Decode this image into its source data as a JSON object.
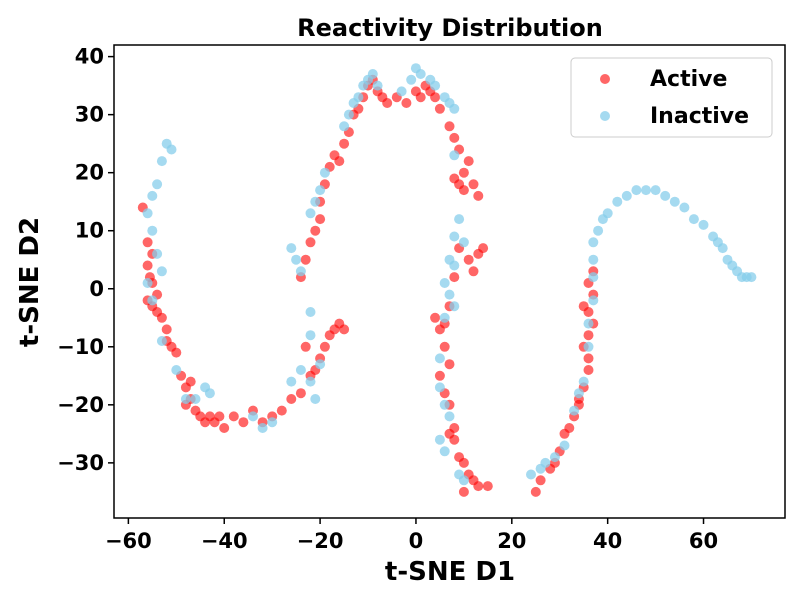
{
  "chart_data": {
    "type": "scatter",
    "title": "Reactivity Distribution",
    "xlabel": "t-SNE D1",
    "ylabel": "t-SNE D2",
    "xlim": [
      -63,
      77
    ],
    "ylim": [
      -39.5,
      42
    ],
    "xticks": [
      -60,
      -40,
      -20,
      0,
      20,
      40,
      60
    ],
    "xtick_labels": [
      "−60",
      "−40",
      "−20",
      "0",
      "20",
      "40",
      "60"
    ],
    "yticks": [
      -30,
      -20,
      -10,
      0,
      10,
      20,
      30,
      40
    ],
    "ytick_labels": [
      "−30",
      "−20",
      "−10",
      "0",
      "10",
      "20",
      "30",
      "40"
    ],
    "grid": false,
    "legend_position": "top-right",
    "series": [
      {
        "name": "Active",
        "color": "#ff0000",
        "alpha": 0.6,
        "points": [
          [
            -57,
            14
          ],
          [
            -56,
            8
          ],
          [
            -56,
            4
          ],
          [
            -55.5,
            2
          ],
          [
            -55,
            6
          ],
          [
            -55,
            1
          ],
          [
            -56,
            -2
          ],
          [
            -55,
            -3
          ],
          [
            -54,
            -4
          ],
          [
            -54,
            -1
          ],
          [
            -53,
            -5
          ],
          [
            -52,
            -9
          ],
          [
            -52,
            -7
          ],
          [
            -51,
            -10
          ],
          [
            -50,
            -11
          ],
          [
            -49,
            -15
          ],
          [
            -48,
            -17
          ],
          [
            -47,
            -16
          ],
          [
            -48,
            -20
          ],
          [
            -47,
            -19
          ],
          [
            -46,
            -21
          ],
          [
            -45,
            -22
          ],
          [
            -44,
            -23
          ],
          [
            -43,
            -22
          ],
          [
            -42,
            -23
          ],
          [
            -41,
            -22
          ],
          [
            -40,
            -24
          ],
          [
            -38,
            -22
          ],
          [
            -36,
            -23
          ],
          [
            -34,
            -21
          ],
          [
            -32,
            -23
          ],
          [
            -30,
            -22
          ],
          [
            -28,
            -21
          ],
          [
            -26,
            -19
          ],
          [
            -24,
            -18
          ],
          [
            -22,
            -15
          ],
          [
            -21,
            -14
          ],
          [
            -20,
            -12
          ],
          [
            -19,
            -10
          ],
          [
            -18,
            -8
          ],
          [
            -17,
            -7
          ],
          [
            -16,
            -6
          ],
          [
            -15,
            -7
          ],
          [
            -23,
            -10
          ],
          [
            -24,
            2
          ],
          [
            -23,
            5
          ],
          [
            -22,
            8
          ],
          [
            -21,
            10
          ],
          [
            -20,
            12
          ],
          [
            -20,
            15
          ],
          [
            -19,
            18
          ],
          [
            -18,
            21
          ],
          [
            -17,
            23
          ],
          [
            -16,
            22
          ],
          [
            -15,
            25
          ],
          [
            -14,
            27
          ],
          [
            -13,
            30
          ],
          [
            -12,
            31
          ],
          [
            -11,
            33
          ],
          [
            -10,
            35
          ],
          [
            -9,
            36
          ],
          [
            -8,
            34
          ],
          [
            -7,
            33
          ],
          [
            -6,
            32
          ],
          [
            -4,
            33
          ],
          [
            -2,
            32
          ],
          [
            0,
            34
          ],
          [
            1,
            33
          ],
          [
            2,
            35
          ],
          [
            3,
            34
          ],
          [
            4,
            33
          ],
          [
            5,
            31
          ],
          [
            7,
            28
          ],
          [
            8,
            26
          ],
          [
            9,
            24
          ],
          [
            10,
            20
          ],
          [
            9,
            18
          ],
          [
            8,
            19
          ],
          [
            11,
            22
          ],
          [
            12,
            18
          ],
          [
            10,
            17
          ],
          [
            13,
            16
          ],
          [
            9,
            7
          ],
          [
            11,
            5
          ],
          [
            12,
            3
          ],
          [
            13,
            6
          ],
          [
            14,
            7
          ],
          [
            8,
            2
          ],
          [
            7,
            -3
          ],
          [
            6,
            -6
          ],
          [
            5,
            -7
          ],
          [
            4,
            -5
          ],
          [
            6,
            -10
          ],
          [
            7,
            -13
          ],
          [
            5,
            -15
          ],
          [
            6,
            -18
          ],
          [
            7,
            -20
          ],
          [
            8,
            -24
          ],
          [
            7,
            -25
          ],
          [
            8,
            -26
          ],
          [
            9,
            -29
          ],
          [
            10,
            -30
          ],
          [
            11,
            -32
          ],
          [
            12,
            -33
          ],
          [
            13,
            -34
          ],
          [
            15,
            -34
          ],
          [
            10,
            -35
          ],
          [
            25,
            -35
          ],
          [
            26,
            -33
          ],
          [
            28,
            -31
          ],
          [
            29,
            -30
          ],
          [
            30,
            -28
          ],
          [
            31,
            -25
          ],
          [
            32,
            -24
          ],
          [
            33,
            -22
          ],
          [
            34,
            -20
          ],
          [
            34,
            -19
          ],
          [
            35,
            -17
          ],
          [
            36,
            -14
          ],
          [
            36,
            -12
          ],
          [
            35,
            -10
          ],
          [
            36,
            -8
          ],
          [
            37,
            -6
          ],
          [
            36,
            -4
          ],
          [
            35,
            -3
          ],
          [
            37,
            -1
          ],
          [
            36,
            1
          ],
          [
            37,
            3
          ]
        ]
      },
      {
        "name": "Inactive",
        "color": "#87ceeb",
        "alpha": 0.75,
        "points": [
          [
            -52,
            25
          ],
          [
            -51,
            24
          ],
          [
            -53,
            22
          ],
          [
            -54,
            18
          ],
          [
            -55,
            16
          ],
          [
            -56,
            13
          ],
          [
            -55,
            10
          ],
          [
            -54,
            6
          ],
          [
            -53,
            3
          ],
          [
            -56,
            1
          ],
          [
            -55,
            -2
          ],
          [
            -53,
            -9
          ],
          [
            -50,
            -14
          ],
          [
            -48,
            -19
          ],
          [
            -46,
            -19
          ],
          [
            -43,
            -18
          ],
          [
            -44,
            -17
          ],
          [
            -34,
            -22
          ],
          [
            -32,
            -24
          ],
          [
            -30,
            -23
          ],
          [
            -26,
            -16
          ],
          [
            -24,
            -14
          ],
          [
            -22,
            -16
          ],
          [
            -21,
            -19
          ],
          [
            -20,
            -13
          ],
          [
            -22,
            -8
          ],
          [
            -22,
            -4
          ],
          [
            -24,
            3
          ],
          [
            -25,
            5
          ],
          [
            -26,
            7
          ],
          [
            -22,
            13
          ],
          [
            -21,
            15
          ],
          [
            -20,
            17
          ],
          [
            -19,
            20
          ],
          [
            -15,
            28
          ],
          [
            -14,
            30
          ],
          [
            -13,
            32
          ],
          [
            -12,
            33
          ],
          [
            -11,
            35
          ],
          [
            -10,
            36
          ],
          [
            -9,
            37
          ],
          [
            -8,
            35
          ],
          [
            -3,
            34
          ],
          [
            -1,
            36
          ],
          [
            0,
            38
          ],
          [
            1,
            37
          ],
          [
            3,
            36
          ],
          [
            4,
            35
          ],
          [
            6,
            33
          ],
          [
            7,
            32
          ],
          [
            8,
            31
          ],
          [
            8,
            23
          ],
          [
            9,
            12
          ],
          [
            8,
            9
          ],
          [
            10,
            8
          ],
          [
            7,
            5
          ],
          [
            8,
            4
          ],
          [
            6,
            1
          ],
          [
            7,
            -1
          ],
          [
            8,
            -3
          ],
          [
            6,
            -5
          ],
          [
            5,
            -12
          ],
          [
            5,
            -17
          ],
          [
            6,
            -20
          ],
          [
            7,
            -22
          ],
          [
            5,
            -26
          ],
          [
            6,
            -28
          ],
          [
            9,
            -32
          ],
          [
            10,
            -33
          ],
          [
            24,
            -32
          ],
          [
            26,
            -31
          ],
          [
            27,
            -30
          ],
          [
            29,
            -29
          ],
          [
            31,
            -27
          ],
          [
            33,
            -21
          ],
          [
            34,
            -18
          ],
          [
            35,
            -16
          ],
          [
            36,
            -10
          ],
          [
            36,
            -6
          ],
          [
            37,
            -2
          ],
          [
            37,
            2
          ],
          [
            37,
            5
          ],
          [
            37,
            8
          ],
          [
            38,
            10
          ],
          [
            39,
            12
          ],
          [
            40,
            13
          ],
          [
            42,
            15
          ],
          [
            44,
            16
          ],
          [
            46,
            17
          ],
          [
            48,
            17
          ],
          [
            50,
            17
          ],
          [
            52,
            16
          ],
          [
            54,
            15
          ],
          [
            56,
            14
          ],
          [
            58,
            12
          ],
          [
            60,
            11
          ],
          [
            62,
            9
          ],
          [
            63,
            8
          ],
          [
            64,
            7
          ],
          [
            65,
            5
          ],
          [
            66,
            4
          ],
          [
            67,
            3
          ],
          [
            68,
            2
          ],
          [
            69,
            2
          ],
          [
            70,
            2
          ]
        ]
      }
    ]
  }
}
